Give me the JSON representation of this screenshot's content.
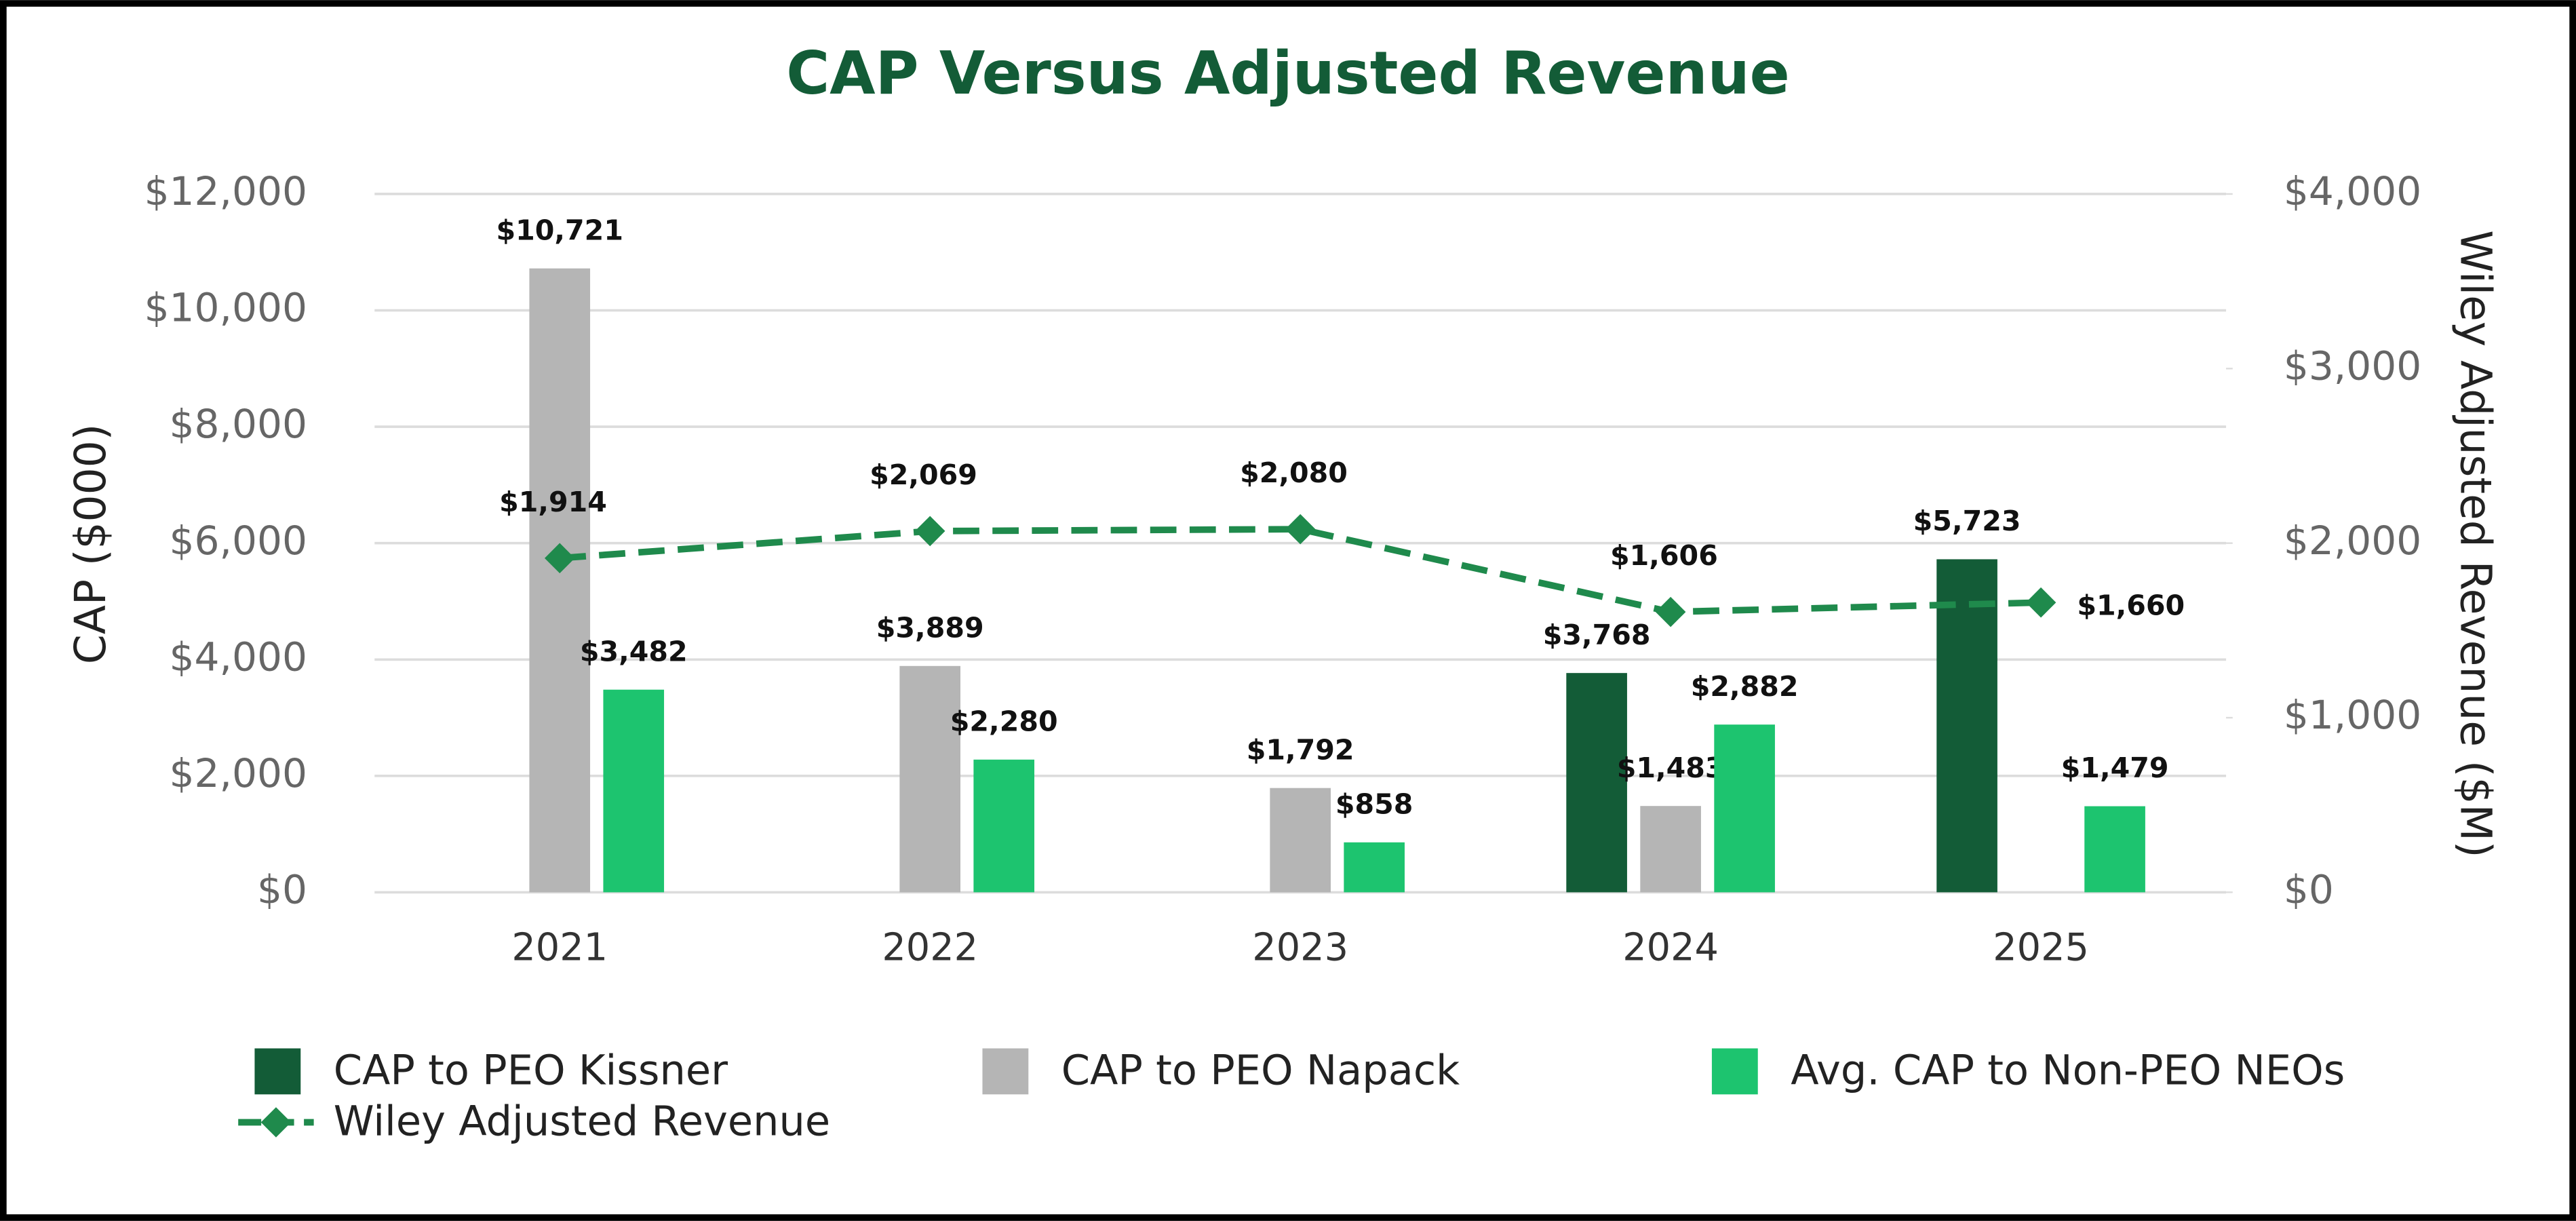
{
  "chart_data": {
    "type": "bar_line",
    "title": "CAP Versus Adjusted Revenue",
    "y_label": "CAP ($000)",
    "y2_label": "Wiley Adjusted Revenue ($M)",
    "categories": [
      "2021",
      "2022",
      "2023",
      "2024",
      "2025"
    ],
    "ylim": [
      0,
      12000
    ],
    "yticks": [
      {
        "value": 0,
        "label": "$0"
      },
      {
        "value": 2000,
        "label": "$2,000"
      },
      {
        "value": 4000,
        "label": "$4,000"
      },
      {
        "value": 6000,
        "label": "$6,000"
      },
      {
        "value": 8000,
        "label": "$8,000"
      },
      {
        "value": 10000,
        "label": "$10,000"
      },
      {
        "value": 12000,
        "label": "$12,000"
      }
    ],
    "y2lim": [
      0,
      4000
    ],
    "y2ticks": [
      {
        "value": 0,
        "label": "$0"
      },
      {
        "value": 1000,
        "label": "$1,000"
      },
      {
        "value": 2000,
        "label": "$2,000"
      },
      {
        "value": 3000,
        "label": "$3,000"
      },
      {
        "value": 4000,
        "label": "$4,000"
      }
    ],
    "grid": true,
    "series": [
      {
        "name": "CAP to PEO Kissner",
        "type": "bar",
        "color": "#135c37",
        "values": [
          null,
          null,
          null,
          3768,
          5723
        ],
        "value_labels": [
          null,
          null,
          null,
          "$3,768",
          "$5,723"
        ]
      },
      {
        "name": "CAP to PEO Napack",
        "type": "bar",
        "color": "#b5b5b5",
        "values": [
          10721,
          3889,
          1792,
          1483,
          null
        ],
        "value_labels": [
          "$10,721",
          "$3,889",
          "$1,792",
          "$1,483",
          null
        ]
      },
      {
        "name": "Avg. CAP to Non-PEO NEOs",
        "type": "bar",
        "color": "#1dc46f",
        "values": [
          3482,
          2280,
          858,
          2882,
          1479
        ],
        "value_labels": [
          "$3,482",
          "$2,280",
          "$858",
          "$2,882",
          "$1,479"
        ]
      },
      {
        "name": "Wiley Adjusted Revenue",
        "type": "line",
        "axis": "y2",
        "color": "#1f8a4c",
        "values": [
          1914,
          2069,
          2080,
          1606,
          1660
        ],
        "value_labels": [
          "$1,914",
          "$2,069",
          "$2,080",
          "$1,606",
          "$1,660"
        ]
      }
    ]
  }
}
